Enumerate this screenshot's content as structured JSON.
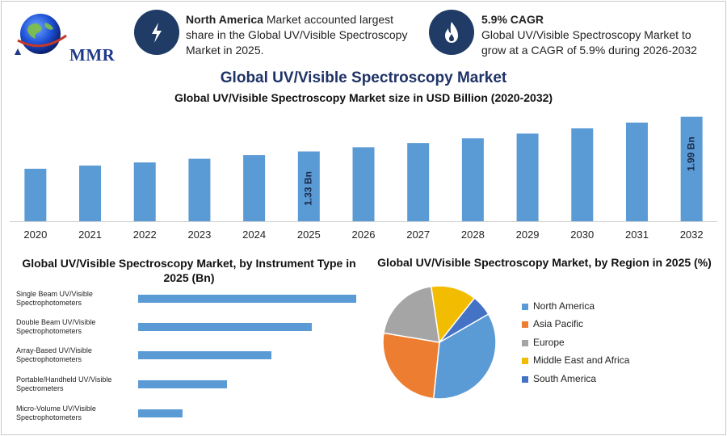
{
  "header": {
    "logo_text": "MMR",
    "info1": {
      "bold": "North America",
      "text": " Market accounted largest share in the Global UV/Visible Spectroscopy Market in 2025.",
      "icon": "lightning-icon"
    },
    "info2": {
      "bold": "5.9% CAGR",
      "text": "Global UV/Visible Spectroscopy Market to grow at a CAGR of 5.9% during 2026-2032",
      "icon": "flame-icon"
    }
  },
  "main_title": "Global UV/Visible Spectroscopy Market",
  "colors": {
    "bar": "#5b9bd5",
    "navy": "#1f3b66",
    "title": "#1f3366"
  },
  "chart_data": [
    {
      "type": "bar",
      "title": "Global UV/Visible Spectroscopy Market size in USD Billion (2020-2032)",
      "categories": [
        "2020",
        "2021",
        "2022",
        "2023",
        "2024",
        "2025",
        "2026",
        "2027",
        "2028",
        "2029",
        "2030",
        "2031",
        "2032"
      ],
      "values": [
        1.0,
        1.06,
        1.12,
        1.19,
        1.26,
        1.33,
        1.41,
        1.49,
        1.58,
        1.67,
        1.77,
        1.88,
        1.99
      ],
      "data_labels": [
        {
          "index": 5,
          "text": "1.33 Bn"
        },
        {
          "index": 12,
          "text": "1.99 Bn"
        }
      ],
      "ylim": [
        0,
        2.0
      ],
      "grid": false
    },
    {
      "type": "bar",
      "orientation": "horizontal",
      "title": "Global UV/Visible Spectroscopy Market, by Instrument Type in 2025 (Bn)",
      "categories": [
        "Single Beam UV/Visible Spectrophotometers",
        "Double Beam UV/Visible Spectrophotometers",
        "Array-Based UV/Visible Spectrophotometers",
        "Portable/Handheld UV/Visible Spectrometers",
        "Micro-Volume UV/Visible Spectrophotometers"
      ],
      "values": [
        0.49,
        0.39,
        0.3,
        0.2,
        0.1
      ],
      "xlim": [
        0,
        0.5
      ]
    },
    {
      "type": "pie",
      "title": "Global UV/Visible Spectroscopy Market, by Region in 2025 (%)",
      "legend_position": "right",
      "slices": [
        {
          "label": "North America",
          "value": 35,
          "color": "#5b9bd5"
        },
        {
          "label": "Asia Pacific",
          "value": 26,
          "color": "#ed7d31"
        },
        {
          "label": "Europe",
          "value": 20,
          "color": "#a5a5a5"
        },
        {
          "label": "Middle East and Africa",
          "value": 13,
          "color": "#f2bd00"
        },
        {
          "label": "South America",
          "value": 6,
          "color": "#4472c4"
        }
      ]
    }
  ]
}
